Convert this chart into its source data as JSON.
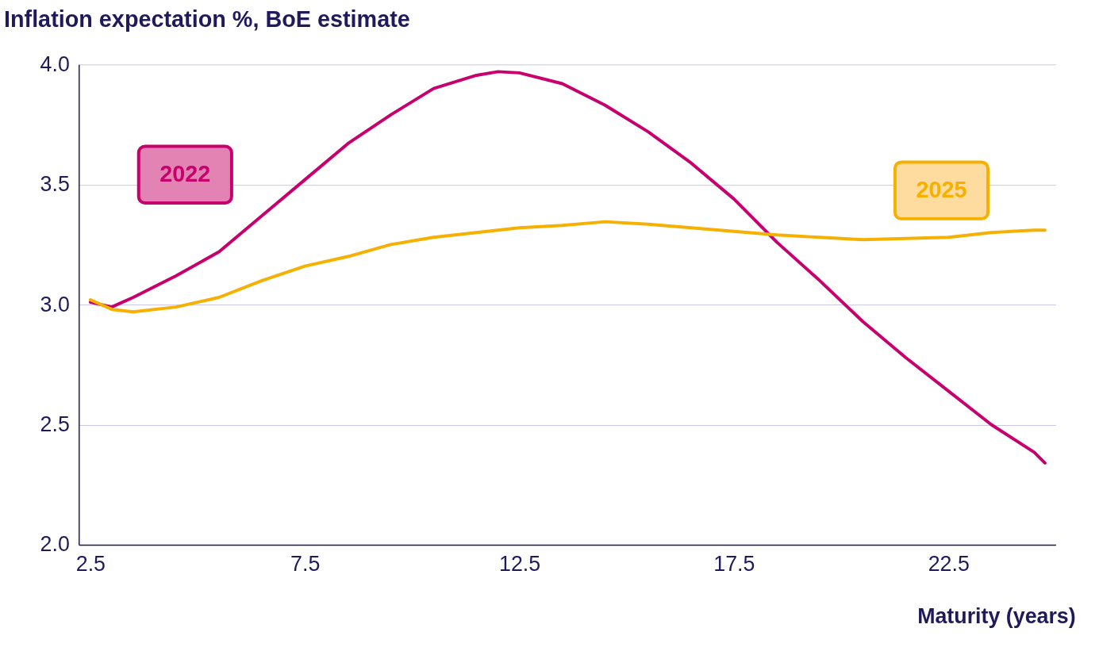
{
  "chart_data": {
    "type": "line",
    "title": "Inflation expectation %, BoE estimate",
    "xlabel": "Maturity (years)",
    "x": [
      2.5,
      3.0,
      3.5,
      4.5,
      5.5,
      6.5,
      7.5,
      8.5,
      9.5,
      10.5,
      11.5,
      12.0,
      12.5,
      13.5,
      14.5,
      15.5,
      16.5,
      17.5,
      18.5,
      19.5,
      20.5,
      21.5,
      22.5,
      23.5,
      24.5,
      24.75
    ],
    "series": [
      {
        "name": "2022",
        "color": "#c8006e",
        "values": [
          3.01,
          2.99,
          3.03,
          3.12,
          3.22,
          3.37,
          3.52,
          3.67,
          3.79,
          3.9,
          3.955,
          3.97,
          3.965,
          3.92,
          3.83,
          3.72,
          3.59,
          3.44,
          3.26,
          3.1,
          2.93,
          2.78,
          2.64,
          2.5,
          2.385,
          2.34
        ]
      },
      {
        "name": "2025",
        "color": "#f5b000",
        "values": [
          3.02,
          2.98,
          2.97,
          2.99,
          3.03,
          3.1,
          3.16,
          3.2,
          3.25,
          3.28,
          3.3,
          3.31,
          3.32,
          3.33,
          3.345,
          3.335,
          3.32,
          3.305,
          3.29,
          3.28,
          3.27,
          3.275,
          3.28,
          3.3,
          3.31,
          3.31
        ]
      }
    ],
    "xlim": [
      2.23,
      25.0
    ],
    "xticks": [
      2.5,
      7.5,
      12.5,
      17.5,
      22.5
    ],
    "ylim": [
      2.0,
      4.0
    ],
    "yticks": [
      {
        "value": 2.0,
        "label": "2.0"
      },
      {
        "value": 2.5,
        "label": "2.5"
      },
      {
        "value": 3.0,
        "label": "3.0"
      },
      {
        "value": 3.5,
        "label": "3.5"
      },
      {
        "value": 4.0,
        "label": "4.0"
      }
    ],
    "grid": "y",
    "legend": false,
    "marker": "none",
    "line_style": "solid"
  }
}
